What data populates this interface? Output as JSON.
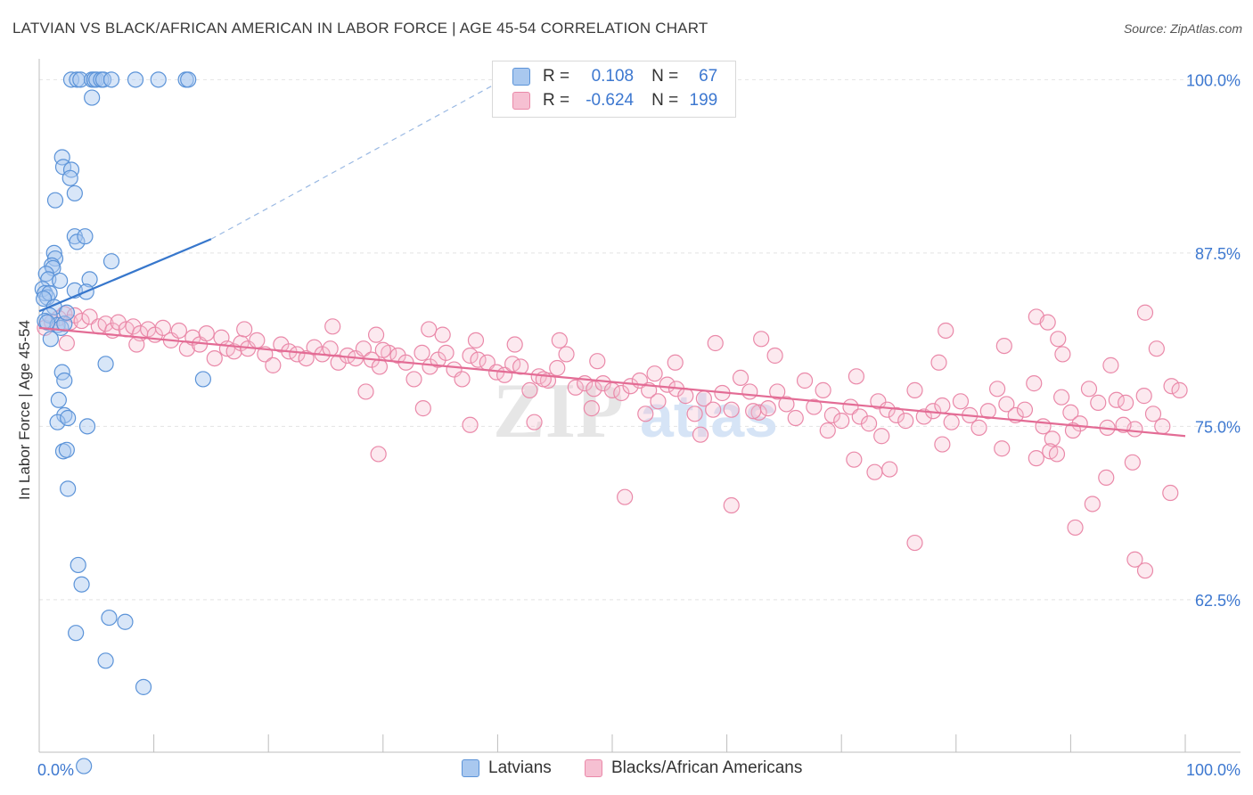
{
  "header": {
    "title": "LATVIAN VS BLACK/AFRICAN AMERICAN IN LABOR FORCE | AGE 45-54 CORRELATION CHART",
    "source": "Source: ZipAtlas.com"
  },
  "legend": {
    "series1": {
      "r_label": "R =",
      "r_value": "0.108",
      "n_label": "N =",
      "n_value": "67"
    },
    "series2": {
      "r_label": "R =",
      "r_value": "-0.624",
      "n_label": "N =",
      "n_value": "199"
    }
  },
  "bottom_legend": {
    "series1": "Latvians",
    "series2": "Blacks/African Americans"
  },
  "watermark": {
    "zip": "ZIP",
    "atlas": "atlas"
  },
  "colors": {
    "blue_fill": "#a9c8ef",
    "blue_stroke": "#5b93d8",
    "blue_line": "#3777cc",
    "pink_fill": "#f6c0d2",
    "pink_stroke": "#ea89a9",
    "pink_line": "#e36c95",
    "tick_label": "#3d78d0",
    "grid": "#e4e4e4"
  },
  "chart_data": {
    "type": "scatter",
    "title": "LATVIAN VS BLACK/AFRICAN AMERICAN IN LABOR FORCE | AGE 45-54 CORRELATION CHART",
    "xlabel": "",
    "ylabel": "In Labor Force | Age 45-54",
    "xlim": [
      0,
      100
    ],
    "ylim": [
      51.5,
      101.5
    ],
    "x_tick_labels": [
      "0.0%",
      "100.0%"
    ],
    "y_ticks": [
      62.5,
      75.0,
      87.5,
      100.0
    ],
    "y_tick_labels": [
      "62.5%",
      "75.0%",
      "87.5%",
      "100.0%"
    ],
    "grid": true,
    "legend_position": "top-center",
    "series": [
      {
        "name": "Latvians",
        "R": 0.108,
        "N": 67,
        "trend": {
          "x": [
            0.0,
            15.0
          ],
          "y": [
            83.3,
            88.5
          ],
          "dashed_to": [
            40.5,
            100.0
          ]
        },
        "points": [
          [
            2.8,
            100.0
          ],
          [
            3.3,
            100.0
          ],
          [
            3.6,
            100.0
          ],
          [
            4.6,
            100.0
          ],
          [
            4.8,
            100.0
          ],
          [
            5.0,
            100.0
          ],
          [
            5.4,
            100.0
          ],
          [
            5.6,
            100.0
          ],
          [
            6.3,
            100.0
          ],
          [
            8.4,
            100.0
          ],
          [
            10.4,
            100.0
          ],
          [
            12.8,
            100.0
          ],
          [
            13.0,
            100.0
          ],
          [
            4.6,
            98.7
          ],
          [
            2.0,
            94.4
          ],
          [
            2.1,
            93.7
          ],
          [
            2.8,
            93.5
          ],
          [
            2.7,
            92.9
          ],
          [
            3.1,
            91.8
          ],
          [
            1.4,
            91.3
          ],
          [
            3.1,
            88.7
          ],
          [
            3.3,
            88.3
          ],
          [
            4.0,
            88.7
          ],
          [
            1.3,
            87.5
          ],
          [
            1.4,
            87.1
          ],
          [
            1.1,
            86.6
          ],
          [
            1.2,
            86.4
          ],
          [
            6.3,
            86.9
          ],
          [
            0.6,
            86.0
          ],
          [
            0.8,
            85.6
          ],
          [
            1.8,
            85.5
          ],
          [
            4.4,
            85.6
          ],
          [
            0.3,
            84.9
          ],
          [
            0.5,
            84.6
          ],
          [
            0.7,
            84.3
          ],
          [
            0.9,
            84.6
          ],
          [
            3.1,
            84.8
          ],
          [
            4.1,
            84.7
          ],
          [
            0.4,
            84.2
          ],
          [
            1.3,
            83.6
          ],
          [
            0.9,
            83.0
          ],
          [
            0.5,
            82.6
          ],
          [
            1.6,
            82.3
          ],
          [
            1.9,
            82.1
          ],
          [
            2.2,
            82.4
          ],
          [
            2.4,
            83.2
          ],
          [
            0.7,
            82.5
          ],
          [
            1.0,
            81.3
          ],
          [
            5.8,
            79.5
          ],
          [
            14.3,
            78.4
          ],
          [
            2.0,
            78.9
          ],
          [
            2.2,
            78.3
          ],
          [
            1.7,
            76.9
          ],
          [
            2.2,
            75.8
          ],
          [
            1.6,
            75.3
          ],
          [
            2.5,
            75.6
          ],
          [
            4.2,
            75.0
          ],
          [
            2.1,
            73.2
          ],
          [
            2.4,
            73.3
          ],
          [
            2.5,
            70.5
          ],
          [
            3.4,
            65.0
          ],
          [
            3.7,
            63.6
          ],
          [
            6.1,
            61.2
          ],
          [
            7.5,
            60.9
          ],
          [
            3.2,
            60.1
          ],
          [
            5.8,
            58.1
          ],
          [
            9.1,
            56.2
          ],
          [
            3.9,
            50.5
          ]
        ]
      },
      {
        "name": "Blacks/African Americans",
        "R": -0.624,
        "N": 199,
        "trend": {
          "x": [
            0.0,
            100.0
          ],
          "y": [
            82.1,
            74.3
          ]
        },
        "points": [
          [
            0.5,
            82.1
          ],
          [
            1.1,
            82.5
          ],
          [
            1.7,
            82.8
          ],
          [
            2.2,
            83.1
          ],
          [
            2.7,
            82.5
          ],
          [
            3.1,
            83.0
          ],
          [
            3.7,
            82.6
          ],
          [
            4.4,
            82.9
          ],
          [
            5.2,
            82.2
          ],
          [
            5.8,
            82.4
          ],
          [
            6.4,
            81.9
          ],
          [
            6.9,
            82.5
          ],
          [
            7.6,
            82.0
          ],
          [
            8.2,
            82.2
          ],
          [
            8.8,
            81.7
          ],
          [
            9.5,
            82.0
          ],
          [
            10.1,
            81.6
          ],
          [
            10.8,
            82.1
          ],
          [
            11.5,
            81.2
          ],
          [
            12.2,
            81.9
          ],
          [
            12.9,
            80.6
          ],
          [
            13.4,
            81.4
          ],
          [
            14.0,
            80.9
          ],
          [
            14.6,
            81.7
          ],
          [
            15.3,
            79.9
          ],
          [
            15.9,
            81.4
          ],
          [
            16.4,
            80.6
          ],
          [
            17.0,
            80.4
          ],
          [
            17.6,
            81.0
          ],
          [
            18.2,
            80.6
          ],
          [
            19.0,
            81.2
          ],
          [
            19.7,
            80.2
          ],
          [
            20.4,
            79.4
          ],
          [
            21.1,
            80.9
          ],
          [
            21.8,
            80.4
          ],
          [
            22.5,
            80.2
          ],
          [
            23.3,
            79.9
          ],
          [
            24.0,
            80.7
          ],
          [
            24.7,
            80.2
          ],
          [
            25.4,
            80.6
          ],
          [
            26.1,
            79.6
          ],
          [
            26.9,
            80.1
          ],
          [
            27.6,
            79.9
          ],
          [
            28.3,
            80.6
          ],
          [
            29.0,
            79.8
          ],
          [
            29.7,
            79.3
          ],
          [
            30.5,
            80.3
          ],
          [
            31.3,
            80.1
          ],
          [
            32.0,
            79.6
          ],
          [
            32.7,
            78.4
          ],
          [
            33.4,
            80.3
          ],
          [
            34.1,
            79.3
          ],
          [
            34.8,
            79.8
          ],
          [
            35.5,
            80.3
          ],
          [
            36.2,
            79.1
          ],
          [
            36.9,
            78.4
          ],
          [
            37.6,
            80.1
          ],
          [
            38.3,
            79.8
          ],
          [
            39.1,
            79.6
          ],
          [
            39.9,
            78.9
          ],
          [
            40.6,
            78.7
          ],
          [
            41.3,
            79.5
          ],
          [
            42.0,
            79.3
          ],
          [
            42.8,
            77.6
          ],
          [
            43.6,
            78.6
          ],
          [
            44.4,
            78.3
          ],
          [
            45.2,
            79.2
          ],
          [
            46.0,
            80.2
          ],
          [
            46.8,
            77.8
          ],
          [
            47.6,
            78.1
          ],
          [
            48.4,
            77.7
          ],
          [
            49.2,
            78.1
          ],
          [
            50.0,
            77.6
          ],
          [
            50.8,
            77.4
          ],
          [
            51.6,
            77.9
          ],
          [
            52.4,
            78.3
          ],
          [
            53.2,
            77.6
          ],
          [
            54.0,
            76.8
          ],
          [
            54.8,
            78.0
          ],
          [
            55.6,
            77.7
          ],
          [
            56.4,
            77.2
          ],
          [
            57.2,
            75.9
          ],
          [
            58.0,
            77.0
          ],
          [
            58.8,
            76.2
          ],
          [
            59.6,
            77.4
          ],
          [
            60.4,
            76.2
          ],
          [
            61.2,
            78.5
          ],
          [
            62.0,
            77.5
          ],
          [
            62.8,
            76.0
          ],
          [
            63.6,
            76.3
          ],
          [
            64.4,
            77.5
          ],
          [
            65.2,
            76.6
          ],
          [
            66.0,
            75.6
          ],
          [
            66.8,
            78.3
          ],
          [
            67.6,
            76.4
          ],
          [
            68.4,
            77.6
          ],
          [
            69.2,
            75.8
          ],
          [
            70.0,
            75.4
          ],
          [
            70.8,
            76.4
          ],
          [
            71.6,
            75.7
          ],
          [
            72.4,
            75.2
          ],
          [
            73.2,
            76.8
          ],
          [
            74.0,
            76.2
          ],
          [
            74.8,
            75.8
          ],
          [
            75.6,
            75.4
          ],
          [
            76.4,
            77.6
          ],
          [
            77.2,
            75.7
          ],
          [
            78.0,
            76.1
          ],
          [
            78.8,
            76.5
          ],
          [
            79.6,
            75.3
          ],
          [
            80.4,
            76.8
          ],
          [
            81.2,
            75.8
          ],
          [
            82.0,
            74.9
          ],
          [
            82.8,
            76.1
          ],
          [
            83.6,
            77.7
          ],
          [
            84.4,
            76.6
          ],
          [
            85.2,
            75.8
          ],
          [
            86.0,
            76.2
          ],
          [
            86.8,
            78.1
          ],
          [
            87.6,
            75.0
          ],
          [
            88.4,
            74.1
          ],
          [
            89.2,
            77.1
          ],
          [
            90.0,
            76.0
          ],
          [
            90.8,
            75.2
          ],
          [
            91.6,
            77.7
          ],
          [
            92.4,
            76.7
          ],
          [
            93.2,
            74.9
          ],
          [
            94.0,
            76.9
          ],
          [
            94.8,
            76.7
          ],
          [
            95.6,
            74.8
          ],
          [
            96.4,
            77.2
          ],
          [
            97.2,
            75.9
          ],
          [
            98.0,
            75.0
          ],
          [
            98.8,
            77.9
          ],
          [
            99.5,
            77.6
          ],
          [
            2.4,
            81.0
          ],
          [
            8.5,
            80.9
          ],
          [
            17.9,
            82.0
          ],
          [
            25.6,
            82.2
          ],
          [
            30.0,
            80.5
          ],
          [
            35.2,
            81.6
          ],
          [
            41.5,
            80.9
          ],
          [
            44.0,
            78.4
          ],
          [
            48.7,
            79.7
          ],
          [
            53.7,
            78.8
          ],
          [
            59.0,
            81.0
          ],
          [
            64.2,
            80.1
          ],
          [
            71.3,
            78.6
          ],
          [
            78.5,
            79.6
          ],
          [
            84.2,
            80.8
          ],
          [
            89.3,
            80.2
          ],
          [
            93.5,
            79.4
          ],
          [
            97.5,
            80.6
          ],
          [
            87.0,
            82.9
          ],
          [
            88.0,
            82.5
          ],
          [
            96.5,
            83.2
          ],
          [
            88.9,
            81.3
          ],
          [
            79.1,
            81.9
          ],
          [
            63.0,
            81.3
          ],
          [
            55.5,
            79.6
          ],
          [
            45.4,
            81.2
          ],
          [
            38.1,
            81.2
          ],
          [
            34.0,
            82.0
          ],
          [
            29.4,
            81.6
          ],
          [
            28.5,
            77.5
          ],
          [
            33.5,
            76.3
          ],
          [
            37.6,
            75.1
          ],
          [
            43.2,
            75.3
          ],
          [
            48.2,
            76.3
          ],
          [
            52.9,
            75.9
          ],
          [
            57.7,
            74.4
          ],
          [
            62.3,
            76.1
          ],
          [
            68.8,
            74.7
          ],
          [
            73.5,
            74.3
          ],
          [
            78.8,
            73.7
          ],
          [
            84.0,
            73.4
          ],
          [
            90.2,
            74.7
          ],
          [
            94.6,
            75.1
          ],
          [
            29.6,
            73.0
          ],
          [
            51.1,
            69.9
          ],
          [
            60.4,
            69.3
          ],
          [
            71.1,
            72.6
          ],
          [
            72.9,
            71.7
          ],
          [
            74.2,
            71.9
          ],
          [
            87.0,
            72.7
          ],
          [
            88.2,
            73.2
          ],
          [
            88.8,
            73.0
          ],
          [
            93.1,
            71.3
          ],
          [
            95.4,
            72.4
          ],
          [
            98.7,
            70.2
          ],
          [
            76.4,
            66.6
          ],
          [
            90.4,
            67.7
          ],
          [
            91.9,
            69.4
          ],
          [
            95.6,
            65.4
          ],
          [
            96.5,
            64.6
          ]
        ]
      }
    ]
  }
}
